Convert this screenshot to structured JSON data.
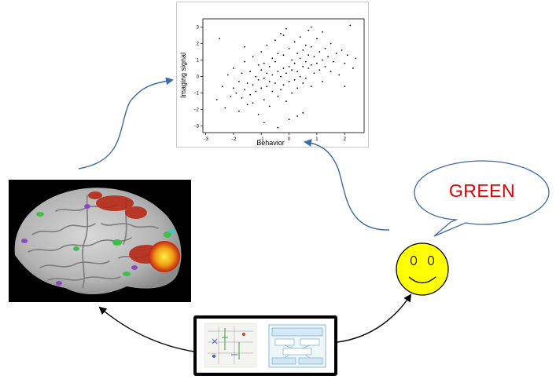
{
  "chart_data": {
    "type": "scatter",
    "xlabel": "Behavior",
    "ylabel": "Imaging signal",
    "xlim": [
      -3.1,
      2.7
    ],
    "ylim": [
      -3.4,
      3.5
    ],
    "xticks": [
      -3,
      -2,
      -1,
      0,
      1,
      2
    ],
    "yticks": [
      -3,
      -2,
      -1,
      0,
      1,
      2,
      3
    ],
    "x": [
      -2.6,
      -2.4,
      -2.3,
      -2.2,
      -2.1,
      -2.0,
      -2.0,
      -1.9,
      -1.8,
      -1.8,
      -1.7,
      -1.7,
      -1.6,
      -1.6,
      -1.5,
      -1.5,
      -1.4,
      -1.4,
      -1.3,
      -1.3,
      -1.3,
      -1.2,
      -1.2,
      -1.1,
      -1.1,
      -1.1,
      -1.0,
      -1.0,
      -1.0,
      -0.9,
      -0.9,
      -0.9,
      -0.8,
      -0.8,
      -0.8,
      -0.7,
      -0.7,
      -0.7,
      -0.6,
      -0.6,
      -0.6,
      -0.5,
      -0.5,
      -0.5,
      -0.4,
      -0.4,
      -0.4,
      -0.3,
      -0.3,
      -0.3,
      -0.2,
      -0.2,
      -0.2,
      -0.1,
      -0.1,
      -0.1,
      0.0,
      0.0,
      0.0,
      0.0,
      0.1,
      0.1,
      0.1,
      0.2,
      0.2,
      0.2,
      0.3,
      0.3,
      0.3,
      0.4,
      0.4,
      0.4,
      0.5,
      0.5,
      0.5,
      0.6,
      0.6,
      0.6,
      0.7,
      0.7,
      0.7,
      0.8,
      0.8,
      0.8,
      0.9,
      0.9,
      1.0,
      1.0,
      1.1,
      1.1,
      1.2,
      1.2,
      1.3,
      1.3,
      1.4,
      1.5,
      1.5,
      1.6,
      1.7,
      1.8,
      1.9,
      2.0,
      2.1,
      2.2,
      2.3,
      2.4,
      -0.9,
      -0.4,
      0.3,
      0.8,
      1.2,
      -1.6,
      -0.2,
      0.5,
      2.0,
      -2.5
    ],
    "y": [
      -1.4,
      -0.6,
      -1.9,
      0.1,
      -1.2,
      -0.7,
      0.5,
      -1.0,
      -0.3,
      -2.1,
      0.2,
      -1.3,
      -0.8,
      0.9,
      -0.4,
      -1.7,
      0.3,
      -1.1,
      -0.5,
      1.2,
      -1.6,
      0.0,
      -0.9,
      -0.2,
      0.7,
      -2.3,
      0.4,
      -0.7,
      1.5,
      -0.1,
      -1.4,
      0.8,
      0.2,
      -0.6,
      1.9,
      -0.3,
      0.6,
      -1.8,
      0.1,
      1.1,
      -0.9,
      -0.4,
      0.9,
      2.2,
      0.3,
      -1.2,
      1.4,
      0.0,
      -0.8,
      2.6,
      0.5,
      -0.5,
      1.3,
      0.2,
      -1.5,
      2.9,
      0.6,
      -0.3,
      1.7,
      -2.6,
      0.4,
      1.0,
      -1.0,
      0.8,
      -0.2,
      2.1,
      0.3,
      1.4,
      -0.7,
      1.1,
      0.0,
      2.4,
      0.6,
      -0.4,
      1.6,
      0.9,
      1.9,
      -0.1,
      0.5,
      1.3,
      2.8,
      0.7,
      -0.6,
      1.8,
      1.2,
      0.2,
      0.8,
      2.3,
      0.4,
      1.5,
      1.0,
      -0.3,
      1.7,
      0.6,
      1.2,
      0.3,
      2.0,
      0.9,
      1.4,
      0.1,
      1.6,
      0.8,
      1.3,
      3.1,
      0.5,
      1.1,
      -2.8,
      -3.1,
      -2.4,
      3.0,
      2.7,
      1.8,
      2.5,
      -2.2,
      -0.6,
      2.3
    ]
  }
}
